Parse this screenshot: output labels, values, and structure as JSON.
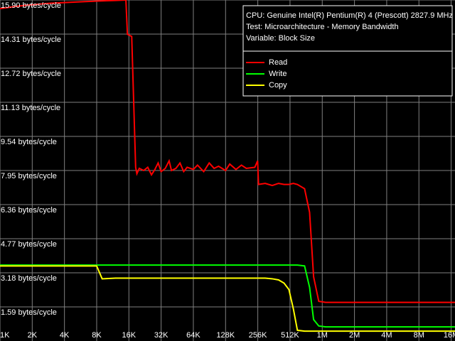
{
  "chart_data": {
    "type": "line",
    "x": [
      1,
      1.5,
      2,
      3,
      4,
      6,
      8,
      9,
      12,
      15,
      15.5,
      17,
      18.5,
      19,
      20,
      22,
      24,
      26,
      28,
      30,
      32,
      35,
      38,
      40,
      44,
      48,
      52,
      56,
      64,
      70,
      80,
      90,
      100,
      110,
      128,
      140,
      160,
      180,
      200,
      240,
      255,
      260,
      300,
      350,
      400,
      450,
      500,
      550,
      600,
      700,
      780,
      850,
      950,
      1100,
      2048,
      4096,
      8192,
      17800
    ],
    "xlim": [
      1,
      17800
    ],
    "xscale": "log",
    "xticks": [
      {
        "value": 1,
        "label": "1K"
      },
      {
        "value": 2,
        "label": "2K"
      },
      {
        "value": 4,
        "label": "4K"
      },
      {
        "value": 8,
        "label": "8K"
      },
      {
        "value": 16,
        "label": "16K"
      },
      {
        "value": 32,
        "label": "32K"
      },
      {
        "value": 64,
        "label": "64K"
      },
      {
        "value": 128,
        "label": "128K"
      },
      {
        "value": 256,
        "label": "256K"
      },
      {
        "value": 512,
        "label": "512K"
      },
      {
        "value": 1024,
        "label": "1M"
      },
      {
        "value": 2048,
        "label": "2M"
      },
      {
        "value": 4096,
        "label": "4M"
      },
      {
        "value": 8192,
        "label": "8M"
      },
      {
        "value": 16384,
        "label": "16M"
      }
    ],
    "ylim": [
      0,
      15.9
    ],
    "yticks": [
      {
        "value": 15.9,
        "label": "15.90 bytes/cycle"
      },
      {
        "value": 14.31,
        "label": "14.31 bytes/cycle"
      },
      {
        "value": 12.72,
        "label": "12.72 bytes/cycle"
      },
      {
        "value": 11.13,
        "label": "11.13 bytes/cycle"
      },
      {
        "value": 9.54,
        "label": "9.54 bytes/cycle"
      },
      {
        "value": 7.95,
        "label": "7.95 bytes/cycle"
      },
      {
        "value": 6.36,
        "label": "6.36 bytes/cycle"
      },
      {
        "value": 4.77,
        "label": "4.77 bytes/cycle"
      },
      {
        "value": 3.18,
        "label": "3.18 bytes/cycle"
      },
      {
        "value": 1.59,
        "label": "1.59 bytes/cycle"
      }
    ],
    "grid": true,
    "grid_color": "#808080",
    "info": [
      "CPU: Genuine Intel(R) Pentium(R) 4 (Prescott) 2827.9 MHz",
      "Test: Microarchitecture - Memory Bandwidth",
      "Variable: Block Size"
    ],
    "legend": "upper right",
    "series": [
      {
        "name": "Read",
        "color": "#ff0000",
        "values": [
          15.5,
          15.62,
          15.68,
          15.75,
          15.78,
          15.82,
          15.85,
          15.86,
          15.88,
          15.9,
          14.3,
          14.2,
          8.1,
          7.8,
          8.05,
          7.95,
          8.1,
          7.75,
          8.0,
          8.3,
          7.9,
          8.05,
          8.4,
          7.95,
          8.05,
          8.3,
          7.9,
          8.1,
          8.0,
          8.2,
          7.9,
          8.3,
          8.05,
          8.15,
          7.95,
          8.25,
          8.0,
          8.2,
          8.05,
          8.1,
          8.4,
          7.3,
          7.35,
          7.25,
          7.35,
          7.3,
          7.3,
          7.35,
          7.3,
          7.1,
          6.0,
          3.0,
          1.85,
          1.8,
          1.8,
          1.8,
          1.8,
          1.8
        ]
      },
      {
        "name": "Write",
        "color": "#00ff00",
        "values": [
          3.54,
          3.54,
          3.54,
          3.54,
          3.54,
          3.54,
          3.54,
          3.54,
          3.54,
          3.54,
          3.54,
          3.54,
          3.54,
          3.54,
          3.54,
          3.54,
          3.54,
          3.54,
          3.54,
          3.54,
          3.54,
          3.54,
          3.54,
          3.54,
          3.54,
          3.54,
          3.54,
          3.54,
          3.54,
          3.54,
          3.54,
          3.54,
          3.54,
          3.54,
          3.54,
          3.54,
          3.54,
          3.54,
          3.54,
          3.54,
          3.54,
          3.54,
          3.54,
          3.54,
          3.54,
          3.54,
          3.54,
          3.54,
          3.54,
          3.5,
          2.5,
          1.0,
          0.7,
          0.66,
          0.66,
          0.66,
          0.66,
          0.66
        ]
      },
      {
        "name": "Copy",
        "color": "#ffff00",
        "values": [
          3.5,
          3.5,
          3.5,
          3.5,
          3.5,
          3.5,
          3.5,
          2.9,
          2.93,
          2.93,
          2.93,
          2.93,
          2.93,
          2.93,
          2.93,
          2.93,
          2.93,
          2.93,
          2.93,
          2.93,
          2.93,
          2.93,
          2.93,
          2.93,
          2.93,
          2.93,
          2.93,
          2.93,
          2.93,
          2.93,
          2.93,
          2.93,
          2.93,
          2.93,
          2.93,
          2.93,
          2.93,
          2.93,
          2.93,
          2.93,
          2.93,
          2.93,
          2.93,
          2.9,
          2.85,
          2.7,
          2.4,
          1.5,
          0.5,
          0.46,
          0.46,
          0.46,
          0.46,
          0.46,
          0.46,
          0.46,
          0.46,
          0.46
        ]
      }
    ]
  }
}
